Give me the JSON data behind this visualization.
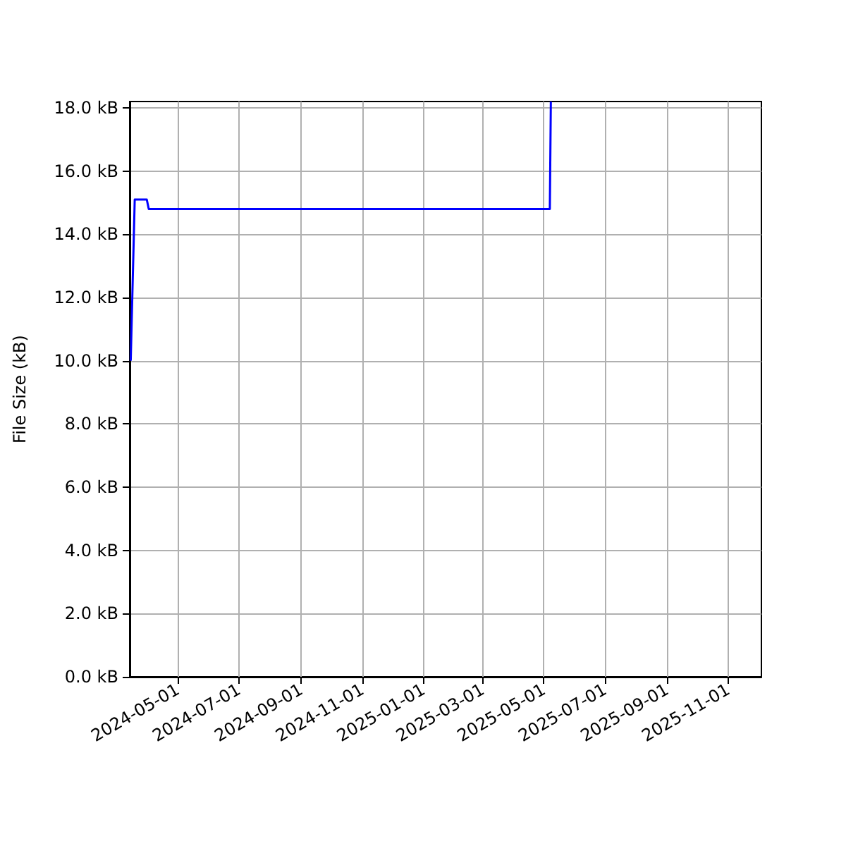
{
  "chart_data": {
    "type": "line",
    "ylabel": "File Size (kB)",
    "x": [
      "2024-03-15",
      "2024-03-19",
      "2024-03-31",
      "2024-04-02",
      "2025-05-07",
      "2025-05-08"
    ],
    "series": [
      {
        "color": "#0000ff",
        "values": [
          10,
          15.1,
          15.1,
          14.8,
          14.8,
          18.2
        ]
      }
    ],
    "xlim": [
      "2024-03-14",
      "2025-12-04"
    ],
    "xticks": [
      "2024-05-01",
      "2024-07-01",
      "2024-09-01",
      "2024-11-01",
      "2025-01-01",
      "2025-03-01",
      "2025-05-01",
      "2025-07-01",
      "2025-09-01",
      "2025-11-01"
    ],
    "ylim": [
      0,
      18.2
    ],
    "yticks": [
      {
        "value": 0,
        "label": "0.0 kB"
      },
      {
        "value": 2,
        "label": "2.0 kB"
      },
      {
        "value": 4,
        "label": "4.0 kB"
      },
      {
        "value": 6,
        "label": "6.0 kB"
      },
      {
        "value": 8,
        "label": "8.0 kB"
      },
      {
        "value": 10,
        "label": "10.0 kB"
      },
      {
        "value": 12,
        "label": "12.0 kB"
      },
      {
        "value": 14,
        "label": "14.0 kB"
      },
      {
        "value": 16,
        "label": "16.0 kB"
      },
      {
        "value": 18,
        "label": "18.0 kB"
      }
    ],
    "grid": true,
    "marker": "none",
    "line_style": "solid"
  }
}
